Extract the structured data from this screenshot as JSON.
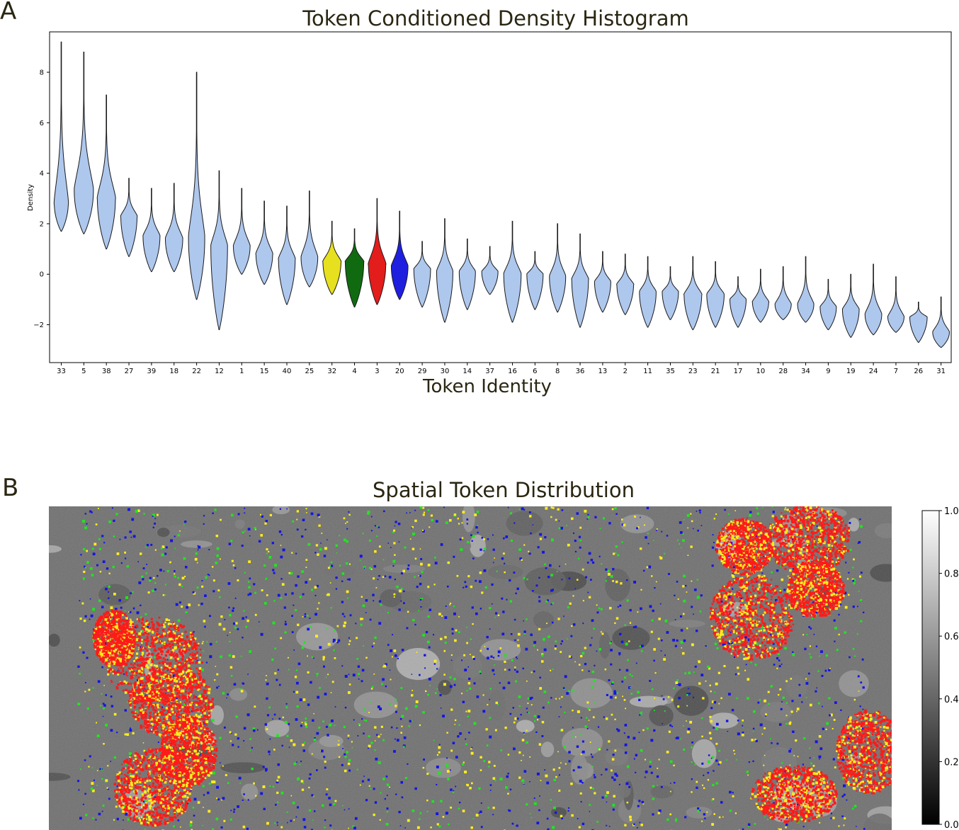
{
  "panels": {
    "a_letter": "A",
    "b_letter": "B"
  },
  "chart_data": [
    {
      "type": "violin",
      "title": "Token Conditioned Density Histogram",
      "xlabel": "Token Identity",
      "ylabel": "Density",
      "ylim": [
        -3.5,
        9.6
      ],
      "yticks": [
        -2,
        0,
        2,
        4,
        6,
        8
      ],
      "ytick_labels": [
        "−2",
        "0",
        "2",
        "4",
        "6",
        "8"
      ],
      "grid": false,
      "base_color": "#aec7ed",
      "highlight_colors": {
        "32": "#e6e01f",
        "4": "#106b10",
        "3": "#e31c1c",
        "20": "#1f1fe0"
      },
      "categories": [
        "33",
        "5",
        "38",
        "27",
        "39",
        "18",
        "22",
        "12",
        "1",
        "15",
        "40",
        "25",
        "32",
        "4",
        "3",
        "20",
        "29",
        "30",
        "14",
        "37",
        "16",
        "6",
        "8",
        "36",
        "13",
        "2",
        "11",
        "35",
        "23",
        "21",
        "17",
        "10",
        "28",
        "34",
        "9",
        "19",
        "24",
        "7",
        "26",
        "31"
      ],
      "violins": [
        {
          "token": "33",
          "min": 1.7,
          "max": 9.2,
          "median": 2.8,
          "halfwidth": 0.62
        },
        {
          "token": "5",
          "min": 1.6,
          "max": 8.8,
          "median": 3.3,
          "halfwidth": 0.85
        },
        {
          "token": "38",
          "min": 1.0,
          "max": 7.1,
          "median": 3.0,
          "halfwidth": 0.8
        },
        {
          "token": "27",
          "min": 0.7,
          "max": 3.8,
          "median": 2.3,
          "halfwidth": 0.72
        },
        {
          "token": "39",
          "min": 0.1,
          "max": 3.4,
          "median": 1.5,
          "halfwidth": 0.75
        },
        {
          "token": "18",
          "min": 0.1,
          "max": 3.6,
          "median": 1.4,
          "halfwidth": 0.77
        },
        {
          "token": "22",
          "min": -1.0,
          "max": 8.0,
          "median": 1.4,
          "halfwidth": 0.72
        },
        {
          "token": "12",
          "min": -2.2,
          "max": 4.1,
          "median": 1.1,
          "halfwidth": 0.74
        },
        {
          "token": "1",
          "min": 0.0,
          "max": 3.4,
          "median": 1.1,
          "halfwidth": 0.74
        },
        {
          "token": "15",
          "min": -0.4,
          "max": 2.9,
          "median": 0.8,
          "halfwidth": 0.74
        },
        {
          "token": "40",
          "min": -1.2,
          "max": 2.7,
          "median": 0.6,
          "halfwidth": 0.74
        },
        {
          "token": "25",
          "min": -0.5,
          "max": 3.3,
          "median": 0.65,
          "halfwidth": 0.74
        },
        {
          "token": "32",
          "min": -0.8,
          "max": 2.1,
          "median": 0.5,
          "halfwidth": 0.8
        },
        {
          "token": "4",
          "min": -1.3,
          "max": 1.8,
          "median": 0.5,
          "halfwidth": 0.82
        },
        {
          "token": "3",
          "min": -1.2,
          "max": 3.0,
          "median": 0.4,
          "halfwidth": 0.77
        },
        {
          "token": "20",
          "min": -1.0,
          "max": 2.5,
          "median": 0.3,
          "halfwidth": 0.74
        },
        {
          "token": "29",
          "min": -1.3,
          "max": 1.3,
          "median": 0.2,
          "halfwidth": 0.74
        },
        {
          "token": "30",
          "min": -1.9,
          "max": 2.2,
          "median": 0.1,
          "halfwidth": 0.72
        },
        {
          "token": "14",
          "min": -1.4,
          "max": 1.4,
          "median": 0.1,
          "halfwidth": 0.72
        },
        {
          "token": "37",
          "min": -0.8,
          "max": 1.1,
          "median": 0.1,
          "halfwidth": 0.72
        },
        {
          "token": "16",
          "min": -1.9,
          "max": 2.1,
          "median": 0.0,
          "halfwidth": 0.77
        },
        {
          "token": "6",
          "min": -1.4,
          "max": 0.9,
          "median": 0.0,
          "halfwidth": 0.72
        },
        {
          "token": "8",
          "min": -1.5,
          "max": 2.0,
          "median": -0.1,
          "halfwidth": 0.72
        },
        {
          "token": "36",
          "min": -2.1,
          "max": 1.6,
          "median": -0.2,
          "halfwidth": 0.74
        },
        {
          "token": "13",
          "min": -1.5,
          "max": 0.9,
          "median": -0.3,
          "halfwidth": 0.72
        },
        {
          "token": "2",
          "min": -1.6,
          "max": 0.8,
          "median": -0.4,
          "halfwidth": 0.74
        },
        {
          "token": "11",
          "min": -2.1,
          "max": 0.7,
          "median": -0.7,
          "halfwidth": 0.74
        },
        {
          "token": "35",
          "min": -1.8,
          "max": 0.3,
          "median": -0.7,
          "halfwidth": 0.72
        },
        {
          "token": "23",
          "min": -2.2,
          "max": 0.7,
          "median": -0.8,
          "halfwidth": 0.78
        },
        {
          "token": "21",
          "min": -2.1,
          "max": 0.5,
          "median": -0.8,
          "halfwidth": 0.77
        },
        {
          "token": "17",
          "min": -2.1,
          "max": -0.1,
          "median": -1.0,
          "halfwidth": 0.72
        },
        {
          "token": "10",
          "min": -1.9,
          "max": 0.2,
          "median": -1.1,
          "halfwidth": 0.72
        },
        {
          "token": "28",
          "min": -1.8,
          "max": 0.3,
          "median": -1.2,
          "halfwidth": 0.72
        },
        {
          "token": "34",
          "min": -1.9,
          "max": 0.7,
          "median": -1.2,
          "halfwidth": 0.72
        },
        {
          "token": "9",
          "min": -2.2,
          "max": -0.2,
          "median": -1.3,
          "halfwidth": 0.72
        },
        {
          "token": "19",
          "min": -2.5,
          "max": 0.0,
          "median": -1.4,
          "halfwidth": 0.74
        },
        {
          "token": "24",
          "min": -2.4,
          "max": 0.4,
          "median": -1.6,
          "halfwidth": 0.74
        },
        {
          "token": "7",
          "min": -2.3,
          "max": -0.1,
          "median": -1.7,
          "halfwidth": 0.72
        },
        {
          "token": "26",
          "min": -2.7,
          "max": -1.1,
          "median": -1.7,
          "halfwidth": 0.77
        },
        {
          "token": "31",
          "min": -2.9,
          "max": -0.9,
          "median": -2.3,
          "halfwidth": 0.74
        }
      ]
    },
    {
      "type": "heatmap",
      "title": "Spatial Token Distribution",
      "colormap": "gray",
      "colorbar_ticks": [
        "0.0",
        "0.2",
        "0.4",
        "0.6",
        "0.8",
        "1.0"
      ],
      "colorbar_range": [
        0.0,
        1.0
      ],
      "overlay_token_colors": [
        "#ff1a1a",
        "#ffee1a",
        "#1414e6",
        "#1fe61f"
      ]
    }
  ]
}
